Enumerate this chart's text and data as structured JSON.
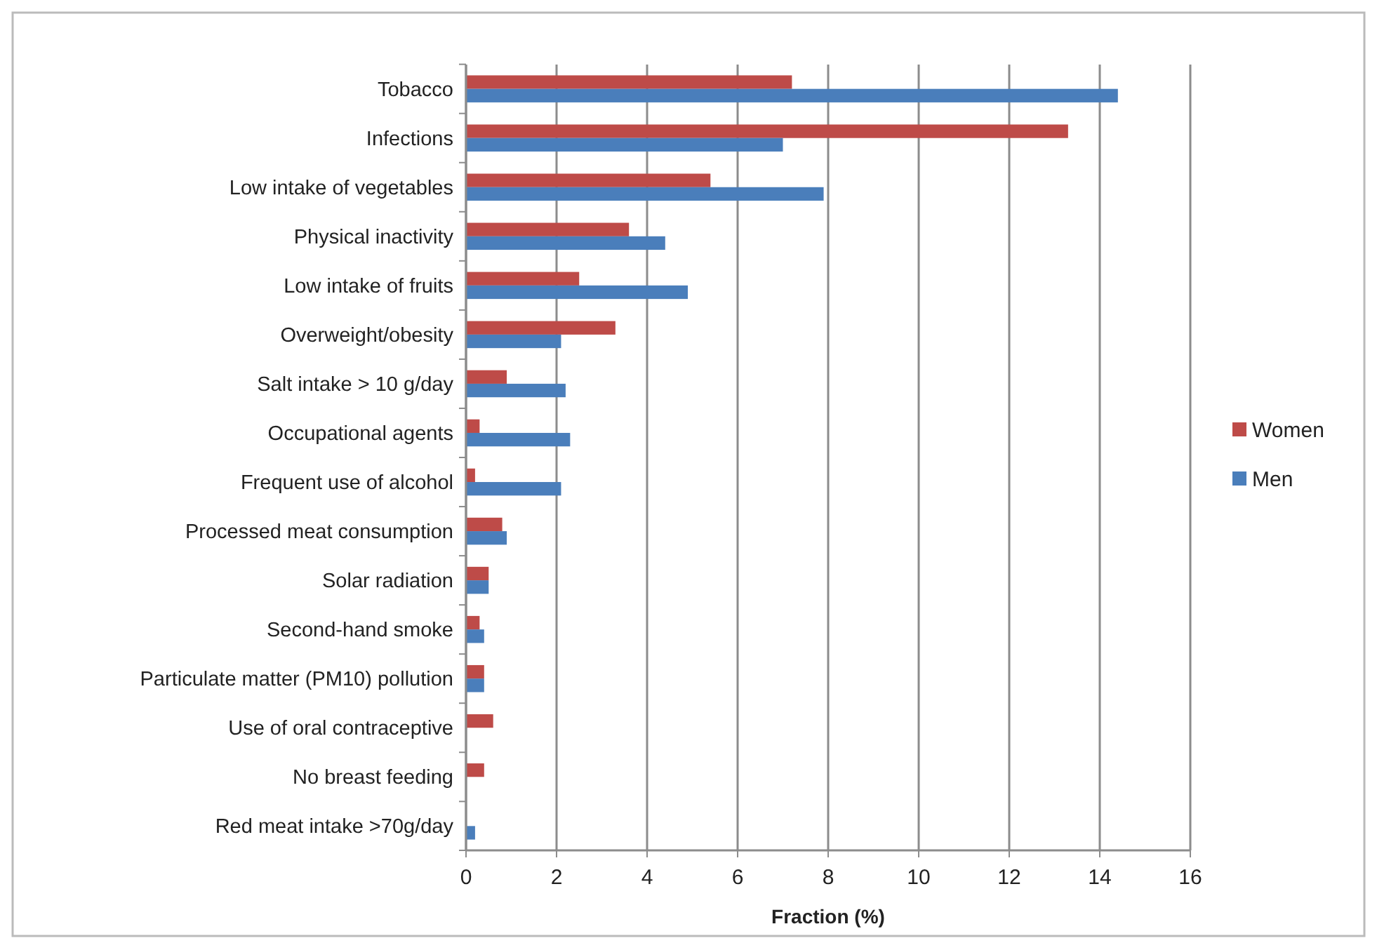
{
  "chart_data": {
    "type": "bar",
    "orientation": "horizontal",
    "xlabel": "Fraction (%)",
    "categories": [
      "Tobacco",
      "Infections",
      "Low intake of vegetables",
      "Physical inactivity",
      "Low intake of fruits",
      "Overweight/obesity",
      "Salt intake > 10 g/day",
      "Occupational agents",
      "Frequent use of alcohol",
      "Processed meat consumption",
      "Solar radiation",
      "Second-hand smoke",
      "Particulate matter (PM10) pollution",
      "Use of oral contraceptive",
      "No breast feeding",
      "Red meat intake >70g/day"
    ],
    "series": [
      {
        "name": "Women",
        "color": "#be4b48",
        "values": [
          7.2,
          13.3,
          5.4,
          3.6,
          2.5,
          3.3,
          0.9,
          0.3,
          0.2,
          0.8,
          0.5,
          0.3,
          0.4,
          0.6,
          0.4,
          null
        ]
      },
      {
        "name": "Men",
        "color": "#4a7ebb",
        "values": [
          14.4,
          7.0,
          7.9,
          4.4,
          4.9,
          2.1,
          2.2,
          2.3,
          2.1,
          0.9,
          0.5,
          0.4,
          0.4,
          null,
          null,
          0.2
        ]
      }
    ],
    "xlim": [
      0,
      16
    ],
    "xticks": [
      0,
      2,
      4,
      6,
      8,
      10,
      12,
      14,
      16
    ],
    "grid": "x",
    "legend": "right"
  }
}
